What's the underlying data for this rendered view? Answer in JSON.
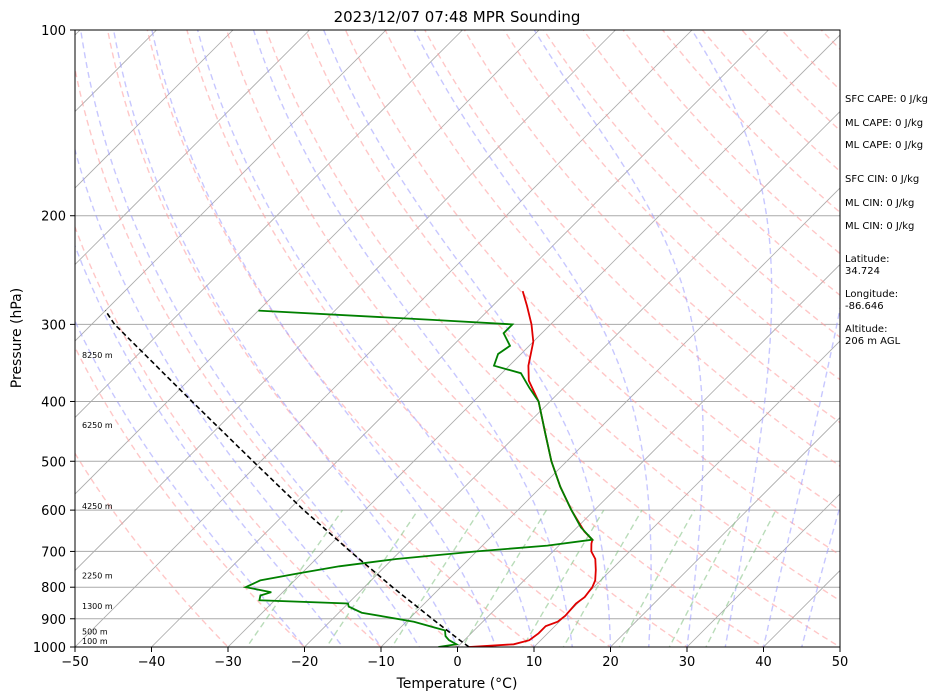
{
  "chart_data": {
    "type": "line",
    "title": "2023/12/07 07:48 MPR Sounding",
    "xlabel": "Temperature (°C)",
    "ylabel": "Pressure (hPa)",
    "xlim": [
      -50,
      50
    ],
    "ylim": [
      1000,
      100
    ],
    "y_scale": "log",
    "skew": "skew-T",
    "x_ticks": [
      -50,
      -40,
      -30,
      -20,
      -10,
      0,
      10,
      20,
      30,
      40,
      50
    ],
    "x_tick_labels": [
      "−50",
      "−40",
      "−30",
      "−20",
      "−10",
      "0",
      "10",
      "20",
      "30",
      "40",
      "50"
    ],
    "y_ticks": [
      1000,
      900,
      800,
      700,
      600,
      500,
      400,
      300,
      200,
      100
    ],
    "y_tick_labels": [
      "1000",
      "900",
      "800",
      "700",
      "600",
      "500",
      "400",
      "300",
      "200",
      "100"
    ],
    "series": [
      {
        "role": "temperature",
        "color": "#e00000",
        "points": [
          [
            1000,
            1.5
          ],
          [
            990,
            7.0
          ],
          [
            975,
            8.5
          ],
          [
            950,
            8.8
          ],
          [
            925,
            8.8
          ],
          [
            910,
            9.8
          ],
          [
            890,
            10.0
          ],
          [
            850,
            9.8
          ],
          [
            830,
            10.1
          ],
          [
            800,
            9.8
          ],
          [
            780,
            9.3
          ],
          [
            750,
            8.0
          ],
          [
            720,
            6.5
          ],
          [
            700,
            5.0
          ],
          [
            680,
            4.0
          ],
          [
            670,
            3.6
          ],
          [
            650,
            1.5
          ],
          [
            600,
            -3.0
          ],
          [
            550,
            -7.5
          ],
          [
            500,
            -12.0
          ],
          [
            450,
            -16.5
          ],
          [
            400,
            -21.5
          ],
          [
            370,
            -25.5
          ],
          [
            350,
            -27.5
          ],
          [
            320,
            -30.0
          ],
          [
            300,
            -32.5
          ],
          [
            280,
            -35.5
          ],
          [
            265,
            -38.0
          ]
        ]
      },
      {
        "role": "dewpoint",
        "color": "#008000",
        "points": [
          [
            1000,
            -2.5
          ],
          [
            990,
            -0.5
          ],
          [
            975,
            -2.0
          ],
          [
            960,
            -3.0
          ],
          [
            940,
            -3.8
          ],
          [
            930,
            -5.5
          ],
          [
            910,
            -9.0
          ],
          [
            880,
            -17.0
          ],
          [
            860,
            -19.5
          ],
          [
            850,
            -20.0
          ],
          [
            840,
            -32.0
          ],
          [
            825,
            -32.5
          ],
          [
            815,
            -31.5
          ],
          [
            800,
            -35.5
          ],
          [
            780,
            -34.5
          ],
          [
            760,
            -30.5
          ],
          [
            740,
            -26.0
          ],
          [
            720,
            -19.5
          ],
          [
            700,
            -10.0
          ],
          [
            685,
            -1.5
          ],
          [
            670,
            3.6
          ],
          [
            640,
            0.5
          ],
          [
            600,
            -3.0
          ],
          [
            550,
            -7.5
          ],
          [
            500,
            -12.0
          ],
          [
            450,
            -16.5
          ],
          [
            400,
            -21.5
          ],
          [
            380,
            -24.5
          ],
          [
            360,
            -27.5
          ],
          [
            350,
            -32.0
          ],
          [
            335,
            -33.0
          ],
          [
            325,
            -32.5
          ],
          [
            310,
            -35.0
          ],
          [
            300,
            -35.0
          ],
          [
            295,
            -46.0
          ],
          [
            285,
            -70.0
          ]
        ]
      },
      {
        "role": "parcel",
        "color": "#000000",
        "dashed": true,
        "points": [
          [
            1000,
            1.5
          ],
          [
            970,
            -1.0
          ],
          [
            900,
            -7.0
          ],
          [
            800,
            -16.3
          ],
          [
            700,
            -26.5
          ],
          [
            600,
            -38.0
          ],
          [
            500,
            -51.0
          ],
          [
            400,
            -66.8
          ],
          [
            300,
            -87.0
          ],
          [
            285,
            -90.0
          ]
        ]
      }
    ],
    "height_labels": [
      {
        "p": 988,
        "text": "100 m"
      },
      {
        "p": 955,
        "text": "500 m"
      },
      {
        "p": 868,
        "text": "1300 m"
      },
      {
        "p": 775,
        "text": "2250 m"
      },
      {
        "p": 598,
        "text": "4250 m"
      },
      {
        "p": 442,
        "text": "6250 m"
      },
      {
        "p": 340,
        "text": "8250 m"
      }
    ],
    "info": {
      "sfc_cape": "SFC CAPE: 0 J/kg",
      "ml_cape_1": "ML CAPE: 0 J/kg",
      "ml_cape_2": "ML CAPE: 0 J/kg",
      "sfc_cin": "SFC CIN: 0 J/kg",
      "ml_cin_1": "ML CIN: 0 J/kg",
      "ml_cin_2": "ML CIN: 0 J/kg",
      "latitude_label": "Latitude:",
      "latitude_value": "34.724",
      "longitude_label": "Longitude:",
      "longitude_value": "-86.646",
      "altitude_label": "Altitude:",
      "altitude_value": "206 m AGL"
    },
    "colors": {
      "isotherm": "#aaaaaa",
      "dry_adiabat": "#ff9999",
      "moist_adiabat": "#9999ff",
      "mixing_ratio": "#80c080",
      "temperature": "#e00000",
      "dewpoint": "#008000",
      "parcel": "#000000"
    }
  }
}
